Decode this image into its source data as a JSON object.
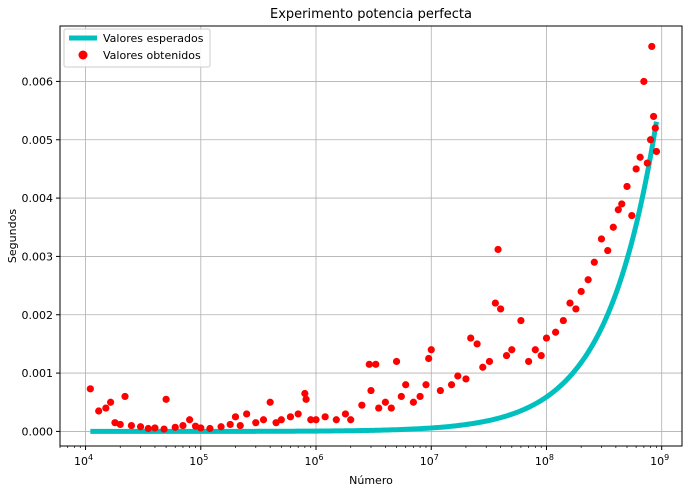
{
  "chart_data": {
    "type": "scatter",
    "title": "Experimento potencia perfecta",
    "xlabel": "Número",
    "ylabel": "Segundos",
    "xscale": "log",
    "xlim": [
      6000,
      1500000000
    ],
    "ylim": [
      -0.00025,
      0.00695
    ],
    "grid": true,
    "legend_position": "top-left",
    "x_ticks": [
      {
        "value": 10000,
        "base": "10",
        "exp": "4"
      },
      {
        "value": 100000,
        "base": "10",
        "exp": "5"
      },
      {
        "value": 1000000,
        "base": "10",
        "exp": "6"
      },
      {
        "value": 10000000,
        "base": "10",
        "exp": "7"
      },
      {
        "value": 100000000,
        "base": "10",
        "exp": "8"
      },
      {
        "value": 1000000000,
        "base": "10",
        "exp": "9"
      }
    ],
    "y_ticks": [
      {
        "value": 0.0,
        "label": "0.000"
      },
      {
        "value": 0.001,
        "label": "0.001"
      },
      {
        "value": 0.002,
        "label": "0.002"
      },
      {
        "value": 0.003,
        "label": "0.003"
      },
      {
        "value": 0.004,
        "label": "0.004"
      },
      {
        "value": 0.005,
        "label": "0.005"
      },
      {
        "value": 0.006,
        "label": "0.006"
      }
    ],
    "series": [
      {
        "name": "Valores esperados",
        "kind": "line",
        "color": "#00bfbf",
        "x_range": [
          11000,
          900000000
        ],
        "model": "y = 5.9e-12 * x",
        "x": [
          11000,
          50000,
          100000,
          200000,
          500000,
          1000000,
          2000000,
          5000000,
          10000000,
          20000000,
          50000000,
          100000000,
          200000000,
          400000000,
          600000000,
          900000000
        ],
        "y": [
          0.0,
          3e-07,
          6e-07,
          1.2e-06,
          3e-06,
          5.9e-06,
          1.2e-05,
          3e-05,
          5.9e-05,
          0.000118,
          0.000295,
          0.00059,
          0.00118,
          0.00236,
          0.00354,
          0.00531
        ]
      },
      {
        "name": "Valores obtenidos",
        "kind": "scatter",
        "color": "#ff0000",
        "x": [
          11000,
          13000,
          15000,
          16500,
          18000,
          20000,
          22000,
          25000,
          30000,
          35000,
          40000,
          48000,
          50000,
          60000,
          70000,
          80000,
          90000,
          100000,
          120000,
          150000,
          180000,
          200000,
          220000,
          250000,
          300000,
          350000,
          400000,
          450000,
          500000,
          600000,
          700000,
          800000,
          820000,
          900000,
          1000000,
          1200000,
          1500000,
          1800000,
          2000000,
          2500000,
          2900000,
          3000000,
          3300000,
          3500000,
          4000000,
          4500000,
          5000000,
          5500000,
          6000000,
          7000000,
          8000000,
          9000000,
          9500000,
          10000000,
          12000000,
          15000000,
          17000000,
          20000000,
          22000000,
          25000000,
          28000000,
          32000000,
          36000000,
          38000000,
          40000000,
          45000000,
          50000000,
          60000000,
          70000000,
          80000000,
          90000000,
          100000000,
          120000000,
          140000000,
          160000000,
          180000000,
          200000000,
          230000000,
          260000000,
          300000000,
          340000000,
          380000000,
          420000000,
          450000000,
          500000000,
          550000000,
          600000000,
          650000000,
          700000000,
          750000000,
          800000000,
          820000000,
          850000000,
          880000000,
          900000000
        ],
        "y": [
          0.00073,
          0.00035,
          0.0004,
          0.0005,
          0.00015,
          0.00012,
          0.0006,
          0.0001,
          8e-05,
          5e-05,
          6e-05,
          4e-05,
          0.00055,
          7e-05,
          0.0001,
          0.0002,
          9e-05,
          6e-05,
          5e-05,
          8e-05,
          0.00012,
          0.00025,
          0.0001,
          0.0003,
          0.00015,
          0.0002,
          0.0005,
          0.00015,
          0.0002,
          0.00025,
          0.0003,
          0.00065,
          0.00055,
          0.0002,
          0.0002,
          0.00025,
          0.0002,
          0.0003,
          0.0002,
          0.00045,
          0.00115,
          0.0007,
          0.00115,
          0.0004,
          0.0005,
          0.0004,
          0.0012,
          0.0006,
          0.0008,
          0.0005,
          0.0006,
          0.0008,
          0.00125,
          0.0014,
          0.0007,
          0.0008,
          0.00095,
          0.0009,
          0.0016,
          0.0015,
          0.0011,
          0.0012,
          0.0022,
          0.00312,
          0.0021,
          0.0013,
          0.0014,
          0.0019,
          0.0012,
          0.0014,
          0.0013,
          0.0016,
          0.0017,
          0.0019,
          0.0022,
          0.0021,
          0.0024,
          0.0026,
          0.0029,
          0.0033,
          0.0031,
          0.0035,
          0.0038,
          0.0039,
          0.0042,
          0.0037,
          0.0045,
          0.0047,
          0.006,
          0.0046,
          0.005,
          0.0066,
          0.0054,
          0.0052,
          0.0048
        ]
      }
    ]
  }
}
